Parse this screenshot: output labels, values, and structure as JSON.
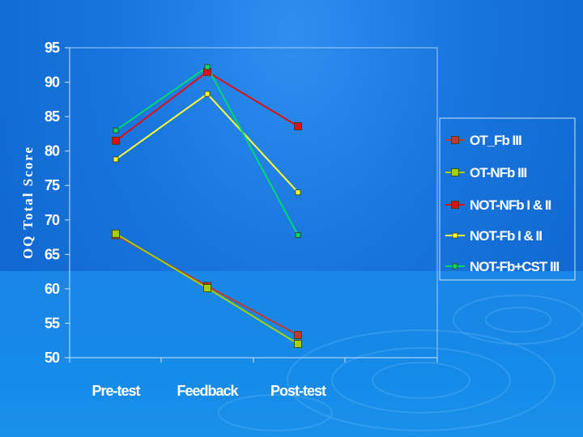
{
  "chart_data": {
    "type": "line",
    "categories": [
      "Pre-test",
      "Feedback",
      "Post-test"
    ],
    "ylabel": "OQ Total Score",
    "ylim": [
      50,
      95
    ],
    "yticks": [
      50,
      55,
      60,
      65,
      70,
      75,
      80,
      85,
      90,
      95
    ],
    "grid": false,
    "legend_position": "right",
    "series": [
      {
        "name": "OT_Fb III",
        "values": [
          67.8,
          60.4,
          53.3
        ],
        "color": "#c0392b",
        "marker": "square"
      },
      {
        "name": "OT-NFb III",
        "values": [
          68.0,
          60.1,
          52.0
        ],
        "color": "#a8d000",
        "marker": "square"
      },
      {
        "name": "NOT-NFb I & II",
        "values": [
          81.5,
          91.5,
          83.6
        ],
        "color": "#e01010",
        "marker": "square"
      },
      {
        "name": "NOT-Fb I & II",
        "values": [
          78.8,
          88.3,
          74.0
        ],
        "color": "#ffff33",
        "marker": "square"
      },
      {
        "name": "NOT-Fb+CST III",
        "values": [
          83.0,
          92.2,
          67.8
        ],
        "color": "#00d870",
        "marker": "square"
      }
    ]
  }
}
